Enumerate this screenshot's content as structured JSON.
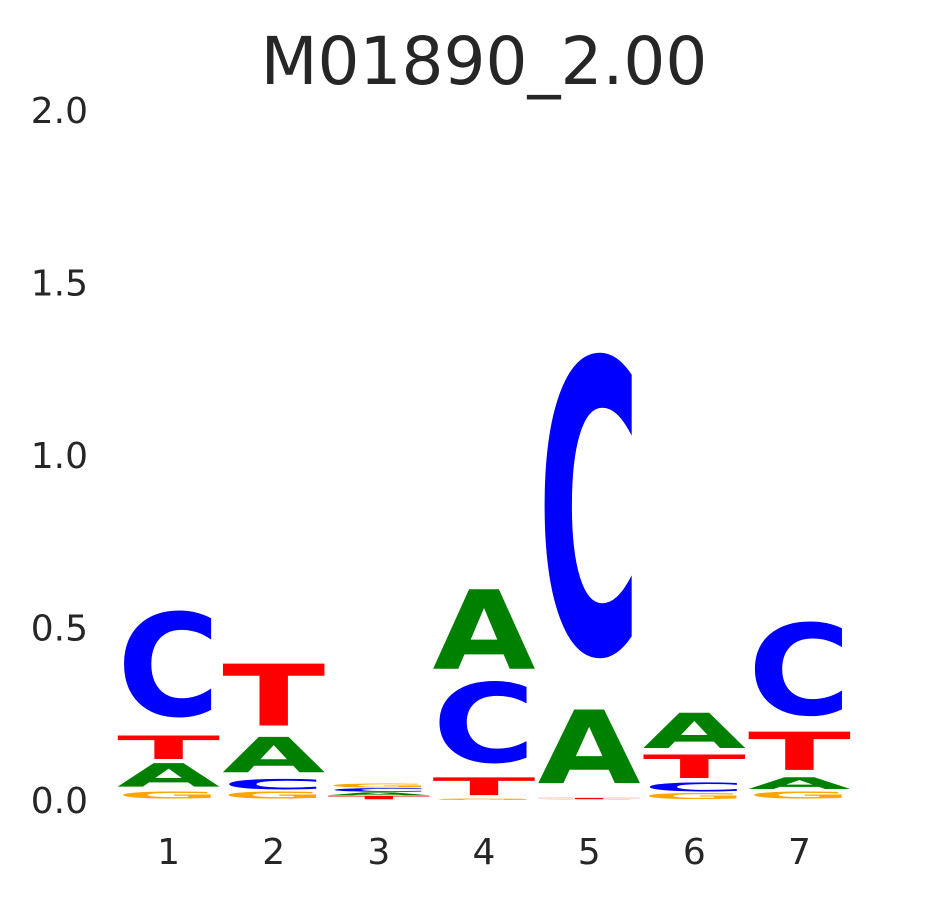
{
  "chart_data": {
    "type": "sequence-logo",
    "title": "M01890_2.00",
    "xlabel": "",
    "ylabel": "",
    "ylim": [
      0,
      2.0
    ],
    "yticks": [
      "0.0",
      "0.5",
      "1.0",
      "1.5",
      "2.0"
    ],
    "grid": false,
    "colors": {
      "A": "#008000",
      "C": "#0000ff",
      "G": "#ffa500",
      "T": "#ff0000"
    },
    "positions": [
      {
        "label": "1",
        "stack": [
          {
            "base": "G",
            "height": 0.025
          },
          {
            "base": "A",
            "height": 0.08
          },
          {
            "base": "T",
            "height": 0.08
          },
          {
            "base": "C",
            "height": 0.35
          }
        ]
      },
      {
        "label": "2",
        "stack": [
          {
            "base": "G",
            "height": 0.025
          },
          {
            "base": "C",
            "height": 0.035
          },
          {
            "base": "A",
            "height": 0.12
          },
          {
            "base": "T",
            "height": 0.21
          }
        ]
      },
      {
        "label": "3",
        "stack": [
          {
            "base": "T",
            "height": 0.012
          },
          {
            "base": "A",
            "height": 0.01
          },
          {
            "base": "C",
            "height": 0.012
          },
          {
            "base": "G",
            "height": 0.012
          }
        ]
      },
      {
        "label": "4",
        "stack": [
          {
            "base": "G",
            "height": 0.004
          },
          {
            "base": "T",
            "height": 0.06
          },
          {
            "base": "C",
            "height": 0.27
          },
          {
            "base": "A",
            "height": 0.27
          }
        ]
      },
      {
        "label": "5",
        "stack": [
          {
            "base": "G",
            "height": 0.002
          },
          {
            "base": "T",
            "height": 0.004
          },
          {
            "base": "A",
            "height": 0.25
          },
          {
            "base": "C",
            "height": 1.0
          }
        ]
      },
      {
        "label": "6",
        "stack": [
          {
            "base": "G",
            "height": 0.02
          },
          {
            "base": "C",
            "height": 0.03
          },
          {
            "base": "T",
            "height": 0.08
          },
          {
            "base": "A",
            "height": 0.12
          }
        ]
      },
      {
        "label": "7",
        "stack": [
          {
            "base": "G",
            "height": 0.025
          },
          {
            "base": "A",
            "height": 0.04
          },
          {
            "base": "T",
            "height": 0.13
          },
          {
            "base": "C",
            "height": 0.31
          }
        ]
      }
    ]
  }
}
